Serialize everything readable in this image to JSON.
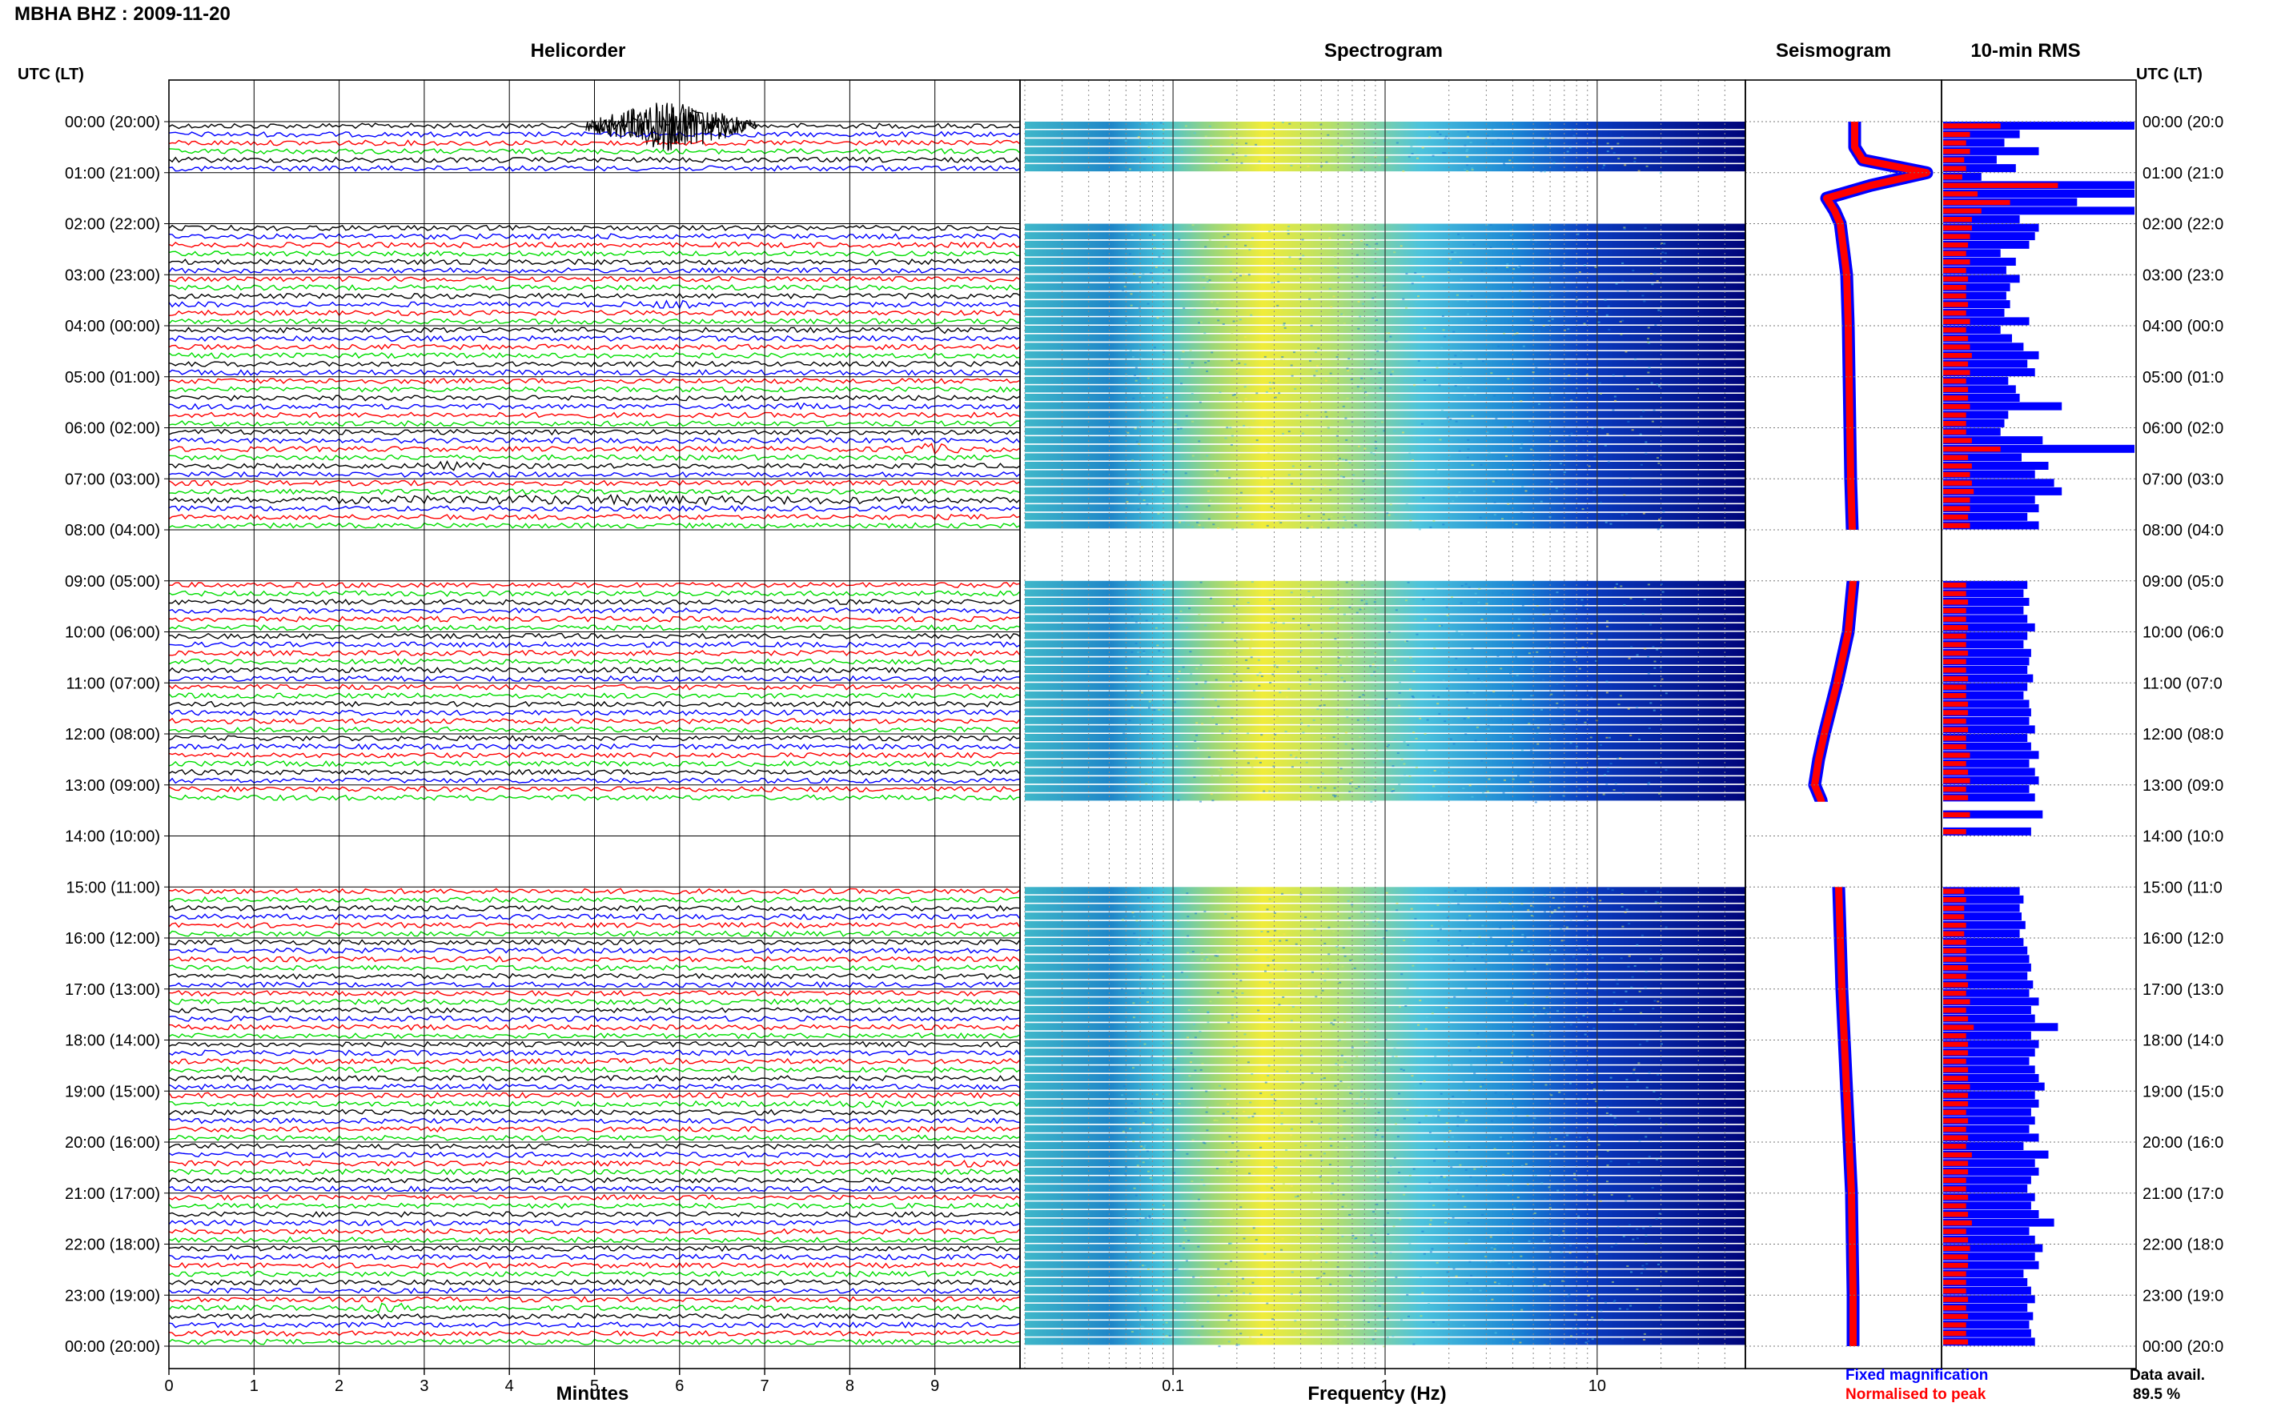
{
  "header": {
    "title": "MBHA BHZ : 2009-11-20",
    "left_axis_label": "UTC (LT)",
    "right_axis_label": "UTC (LT)"
  },
  "panels": {
    "helicorder_title": "Helicorder",
    "spectrogram_title": "Spectrogram",
    "seismogram_title": "Seismogram",
    "rms_title": "10-min RMS"
  },
  "footer": {
    "minutes_label": "Minutes",
    "frequency_label": "Frequency (Hz)",
    "legend_fixed": "Fixed magnification",
    "legend_normalised": "Normalised to peak",
    "data_avail_label": "Data avail.",
    "data_avail_value": "89.5 %"
  },
  "colors": {
    "trace_cycle": [
      "#000000",
      "#0000ff",
      "#ff0000",
      "#00dd00"
    ],
    "fixed_magnification": "#0000ff",
    "normalised_to_peak": "#ff0000",
    "spectrogram_low": "#00007f",
    "spectrogram_high": "#ffff00"
  },
  "chart_data": [
    {
      "type": "heatmap",
      "name": "Helicorder",
      "title": "Helicorder",
      "xlabel": "Minutes",
      "x_ticks": [
        "0",
        "1",
        "2",
        "3",
        "4",
        "5",
        "6",
        "7",
        "8",
        "9"
      ],
      "xlim": [
        0,
        10
      ],
      "ylim_hours": [
        0,
        24
      ],
      "traces_per_hour": 6,
      "hour_labels": [
        "00:00 (20:00)",
        "01:00 (21:00)",
        "02:00 (22:00)",
        "03:00 (23:00)",
        "04:00 (00:00)",
        "05:00 (01:00)",
        "06:00 (02:00)",
        "07:00 (03:00)",
        "08:00 (04:00)",
        "09:00 (05:00)",
        "10:00 (06:00)",
        "11:00 (07:00)",
        "12:00 (08:00)",
        "13:00 (09:00)",
        "14:00 (10:00)",
        "15:00 (11:00)",
        "16:00 (12:00)",
        "17:00 (13:00)",
        "18:00 (14:00)",
        "19:00 (15:00)",
        "20:00 (16:00)",
        "21:00 (17:00)",
        "22:00 (18:00)",
        "23:00 (19:00)",
        "00:00 (20:00)"
      ],
      "right_hour_labels": [
        "00:00 (20:0",
        "01:00 (21:0",
        "02:00 (22:0",
        "03:00 (23:0",
        "04:00 (00:0",
        "05:00 (01:0",
        "06:00 (02:0",
        "07:00 (03:0",
        "08:00 (04:0",
        "09:00 (05:0",
        "10:00 (06:0",
        "11:00 (07:0",
        "12:00 (08:0",
        "13:00 (09:0",
        "14:00 (10:0",
        "15:00 (11:0",
        "16:00 (12:0",
        "17:00 (13:0",
        "18:00 (14:0",
        "19:00 (15:0",
        "20:00 (16:0",
        "21:00 (17:0",
        "22:00 (18:0",
        "23:00 (19:0",
        "00:00 (20:0"
      ],
      "data_gaps_hours": [
        [
          1.0,
          2.0
        ],
        [
          8.0,
          9.0
        ],
        [
          13.33,
          15.0
        ]
      ],
      "events": [
        {
          "hour": 0.0,
          "minute_start": 4.9,
          "minute_end": 6.9,
          "amplitude": 5.0
        },
        {
          "hour": 3.5,
          "minute_start": 5.5,
          "minute_end": 6.3,
          "amplitude": 1.4
        },
        {
          "hour": 4.0,
          "minute_start": 8.9,
          "minute_end": 9.3,
          "amplitude": 1.2
        },
        {
          "hour": 5.5,
          "minute_start": 6.8,
          "minute_end": 7.8,
          "amplitude": 1.3
        },
        {
          "hour": 6.33,
          "minute_start": 8.3,
          "minute_end": 9.5,
          "amplitude": 1.6
        },
        {
          "hour": 6.67,
          "minute_start": 2.8,
          "minute_end": 3.8,
          "amplitude": 1.4
        },
        {
          "hour": 7.33,
          "minute_start": 0.0,
          "minute_end": 10.0,
          "amplitude": 1.5
        },
        {
          "hour": 19.17,
          "minute_start": 7.3,
          "minute_end": 8.7,
          "amplitude": 1.3
        },
        {
          "hour": 20.33,
          "minute_start": 8.8,
          "minute_end": 10.0,
          "amplitude": 1.2
        },
        {
          "hour": 23.17,
          "minute_start": 2.0,
          "minute_end": 3.0,
          "amplitude": 1.6
        }
      ]
    },
    {
      "type": "heatmap",
      "name": "Spectrogram",
      "title": "Spectrogram",
      "xlabel": "Frequency (Hz)",
      "x_scale": "log",
      "x_ticks": [
        "0.1",
        "1",
        "10"
      ],
      "xlim": [
        0.02,
        50
      ],
      "peak_frequency_hz": [
        0.15,
        0.4
      ],
      "data_gaps_hours": [
        [
          1.0,
          2.0
        ],
        [
          8.0,
          9.0
        ],
        [
          13.33,
          15.0
        ]
      ]
    },
    {
      "type": "line",
      "name": "Seismogram",
      "title": "Seismogram",
      "series": [
        {
          "name": "Fixed magnification"
        },
        {
          "name": "Normalised to peak"
        }
      ],
      "hours": [
        0,
        0.25,
        0.5,
        0.75,
        1.0,
        1.25,
        1.5,
        1.75,
        2,
        3,
        4,
        5,
        6,
        7,
        8,
        9,
        10,
        11,
        12,
        12.5,
        13,
        13.3,
        15,
        16,
        17,
        18,
        19,
        20,
        21,
        22,
        23,
        24
      ],
      "offset": [
        0.0,
        0.0,
        0.0,
        0.1,
        0.9,
        0.2,
        -0.35,
        -0.25,
        -0.18,
        -0.1,
        -0.08,
        -0.07,
        -0.06,
        -0.05,
        -0.03,
        -0.02,
        -0.08,
        -0.22,
        -0.38,
        -0.45,
        -0.5,
        -0.42,
        -0.2,
        -0.18,
        -0.16,
        -0.13,
        -0.1,
        -0.07,
        -0.04,
        -0.03,
        -0.02,
        -0.02
      ],
      "ylim_hours": [
        0,
        24
      ]
    },
    {
      "type": "bar",
      "name": "10-min RMS",
      "title": "10-min RMS",
      "orientation": "horizontal",
      "series": [
        {
          "name": "Fixed magnification",
          "values": [
            1.0,
            0.4,
            0.32,
            0.5,
            0.28,
            0.38,
            0.2,
            1.0,
            1.0,
            0.7,
            1.0,
            0.4,
            0.5,
            0.48,
            0.45,
            0.3,
            0.38,
            0.33,
            0.4,
            0.35,
            0.33,
            0.35,
            0.32,
            0.45,
            0.3,
            0.36,
            0.42,
            0.5,
            0.44,
            0.48,
            0.34,
            0.38,
            0.4,
            0.62,
            0.34,
            0.32,
            0.3,
            0.52,
            1.0,
            0.41,
            0.55,
            0.48,
            0.58,
            0.62,
            0.48,
            0.5,
            0.44,
            0.5,
            0.0,
            0.0,
            0.0,
            0.0,
            0.0,
            0.0,
            0.44,
            0.42,
            0.45,
            0.42,
            0.44,
            0.48,
            0.44,
            0.42,
            0.46,
            0.45,
            0.44,
            0.47,
            0.44,
            0.42,
            0.45,
            0.46,
            0.45,
            0.48,
            0.44,
            0.46,
            0.5,
            0.45,
            0.48,
            0.5,
            0.45,
            0.48,
            0.0,
            0.52,
            0.0,
            0.46,
            0.0,
            0.0,
            0.0,
            0.0,
            0.0,
            0.0,
            0.4,
            0.42,
            0.4,
            0.41,
            0.43,
            0.4,
            0.42,
            0.44,
            0.45,
            0.46,
            0.44,
            0.47,
            0.45,
            0.5,
            0.46,
            0.48,
            0.6,
            0.46,
            0.5,
            0.48,
            0.45,
            0.48,
            0.5,
            0.53,
            0.48,
            0.5,
            0.46,
            0.48,
            0.45,
            0.5,
            0.42,
            0.55,
            0.48,
            0.5,
            0.46,
            0.44,
            0.48,
            0.46,
            0.5,
            0.58,
            0.45,
            0.48,
            0.52,
            0.48,
            0.5,
            0.42,
            0.44,
            0.46,
            0.48,
            0.44,
            0.47,
            0.45,
            0.46,
            0.48
          ]
        },
        {
          "name": "Normalised to peak",
          "values": [
            0.3,
            0.14,
            0.12,
            0.14,
            0.11,
            0.12,
            0.1,
            0.6,
            0.18,
            0.35,
            0.2,
            0.15,
            0.15,
            0.14,
            0.13,
            0.12,
            0.14,
            0.12,
            0.13,
            0.12,
            0.12,
            0.13,
            0.12,
            0.14,
            0.12,
            0.13,
            0.14,
            0.15,
            0.13,
            0.14,
            0.12,
            0.13,
            0.13,
            0.14,
            0.12,
            0.12,
            0.12,
            0.15,
            0.3,
            0.13,
            0.15,
            0.14,
            0.15,
            0.16,
            0.14,
            0.14,
            0.13,
            0.14,
            0.0,
            0.0,
            0.0,
            0.0,
            0.0,
            0.0,
            0.12,
            0.12,
            0.13,
            0.12,
            0.12,
            0.13,
            0.12,
            0.12,
            0.13,
            0.12,
            0.12,
            0.13,
            0.12,
            0.12,
            0.13,
            0.13,
            0.12,
            0.13,
            0.12,
            0.12,
            0.14,
            0.12,
            0.13,
            0.14,
            0.12,
            0.13,
            0.0,
            0.14,
            0.0,
            0.12,
            0.0,
            0.0,
            0.0,
            0.0,
            0.0,
            0.0,
            0.11,
            0.12,
            0.11,
            0.11,
            0.12,
            0.11,
            0.12,
            0.12,
            0.12,
            0.13,
            0.12,
            0.13,
            0.12,
            0.14,
            0.12,
            0.13,
            0.16,
            0.12,
            0.13,
            0.13,
            0.12,
            0.13,
            0.13,
            0.14,
            0.13,
            0.13,
            0.12,
            0.13,
            0.12,
            0.13,
            0.12,
            0.15,
            0.13,
            0.13,
            0.12,
            0.12,
            0.13,
            0.12,
            0.13,
            0.15,
            0.12,
            0.13,
            0.14,
            0.13,
            0.13,
            0.12,
            0.12,
            0.12,
            0.13,
            0.12,
            0.13,
            0.12,
            0.12,
            0.13
          ]
        }
      ],
      "bin_minutes": 10,
      "ylim_hours": [
        0,
        24
      ]
    }
  ]
}
